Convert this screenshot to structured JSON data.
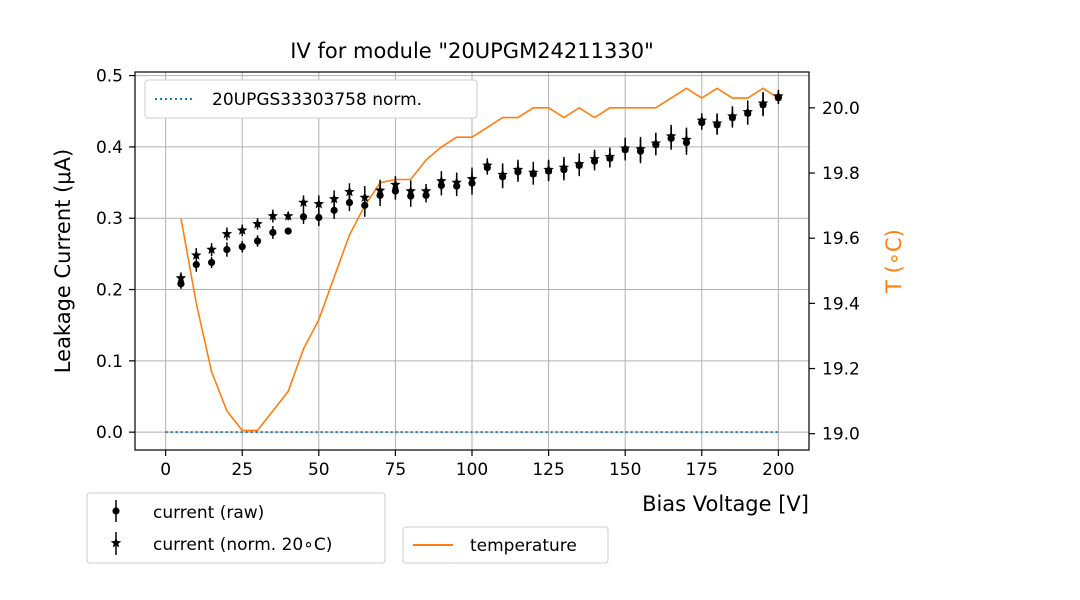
{
  "chart_data": {
    "type": "scatter",
    "title": "IV for module \"20UPGM24211330\"",
    "xlabel": "Bias Voltage [V]",
    "ylabel": "Leakage Current (μA)",
    "y2label": "T (∘C)",
    "xlim": [
      -10,
      210
    ],
    "ylim": [
      -0.025,
      0.505
    ],
    "y2lim": [
      18.95,
      20.11
    ],
    "xticks": [
      0,
      25,
      50,
      75,
      100,
      125,
      150,
      175,
      200
    ],
    "yticks": [
      0.0,
      0.1,
      0.2,
      0.3,
      0.4,
      0.5
    ],
    "y2ticks": [
      19.0,
      19.2,
      19.4,
      19.6,
      19.8,
      20.0
    ],
    "xtick_labels": [
      "0",
      "25",
      "50",
      "75",
      "100",
      "125",
      "150",
      "175",
      "200"
    ],
    "ytick_labels": [
      "0.0",
      "0.1",
      "0.2",
      "0.3",
      "0.4",
      "0.5"
    ],
    "y2tick_labels": [
      "19.0",
      "19.2",
      "19.4",
      "19.6",
      "19.8",
      "20.0"
    ],
    "grid": true,
    "colors": {
      "raw": "#000000",
      "norm": "#000000",
      "reference": "#1f77b4",
      "temperature": "#ff7f0e"
    },
    "voltages": [
      5,
      10,
      15,
      20,
      25,
      30,
      35,
      40,
      45,
      50,
      55,
      60,
      65,
      70,
      75,
      80,
      85,
      90,
      95,
      100,
      105,
      110,
      115,
      120,
      125,
      130,
      135,
      140,
      145,
      150,
      155,
      160,
      165,
      170,
      175,
      180,
      185,
      190,
      195,
      200
    ],
    "series": [
      {
        "name": "current (raw)",
        "marker": "circle",
        "values": [
          0.208,
          0.235,
          0.238,
          0.256,
          0.26,
          0.268,
          0.28,
          0.282,
          0.302,
          0.301,
          0.311,
          0.322,
          0.318,
          0.332,
          0.338,
          0.331,
          0.332,
          0.346,
          0.345,
          0.349,
          0.371,
          0.358,
          0.365,
          0.362,
          0.366,
          0.368,
          0.374,
          0.38,
          0.384,
          0.396,
          0.394,
          0.403,
          0.412,
          0.406,
          0.434,
          0.431,
          0.441,
          0.447,
          0.459,
          0.469
        ],
        "errors": [
          0.007,
          0.01,
          0.008,
          0.01,
          0.008,
          0.008,
          0.009,
          0.005,
          0.01,
          0.012,
          0.012,
          0.012,
          0.016,
          0.015,
          0.012,
          0.015,
          0.01,
          0.014,
          0.014,
          0.016,
          0.01,
          0.016,
          0.014,
          0.015,
          0.014,
          0.015,
          0.015,
          0.013,
          0.013,
          0.015,
          0.017,
          0.015,
          0.016,
          0.017,
          0.01,
          0.014,
          0.014,
          0.016,
          0.016,
          0.009
        ]
      },
      {
        "name": "current (norm. 20∘C)",
        "marker": "star",
        "values": [
          0.216,
          0.248,
          0.256,
          0.278,
          0.283,
          0.292,
          0.303,
          0.303,
          0.322,
          0.32,
          0.327,
          0.337,
          0.329,
          0.339,
          0.347,
          0.338,
          0.338,
          0.352,
          0.35,
          0.355,
          0.374,
          0.361,
          0.368,
          0.364,
          0.368,
          0.371,
          0.376,
          0.383,
          0.386,
          0.398,
          0.397,
          0.405,
          0.415,
          0.41,
          0.437,
          0.433,
          0.443,
          0.449,
          0.461,
          0.471
        ],
        "errors": [
          0.008,
          0.01,
          0.009,
          0.009,
          0.008,
          0.008,
          0.009,
          0.006,
          0.01,
          0.012,
          0.012,
          0.012,
          0.016,
          0.015,
          0.012,
          0.015,
          0.01,
          0.014,
          0.014,
          0.016,
          0.01,
          0.016,
          0.014,
          0.015,
          0.014,
          0.015,
          0.015,
          0.013,
          0.013,
          0.015,
          0.017,
          0.015,
          0.016,
          0.017,
          0.01,
          0.014,
          0.014,
          0.016,
          0.016,
          0.009
        ]
      },
      {
        "name": "20UPGS33303758 norm.",
        "line": "dotted",
        "x": [
          0,
          200
        ],
        "values": [
          0.0,
          0.0
        ]
      },
      {
        "name": "temperature",
        "axis": "right",
        "line": "solid",
        "values": [
          19.66,
          19.4,
          19.19,
          19.07,
          19.01,
          19.01,
          19.07,
          19.13,
          19.26,
          19.35,
          19.48,
          19.61,
          19.7,
          19.77,
          19.78,
          19.78,
          19.84,
          19.88,
          19.91,
          19.91,
          19.94,
          19.97,
          19.97,
          20.0,
          20.0,
          19.97,
          20.0,
          19.97,
          20.0,
          20.0,
          20.0,
          20.0,
          20.03,
          20.06,
          20.03,
          20.06,
          20.03,
          20.03,
          20.06,
          20.03
        ]
      }
    ],
    "legends": {
      "top": [
        "20UPGS33303758 norm."
      ],
      "bottom_left": [
        "current (raw)",
        "current (norm. 20∘C)"
      ],
      "bottom_right": [
        "temperature"
      ]
    }
  }
}
